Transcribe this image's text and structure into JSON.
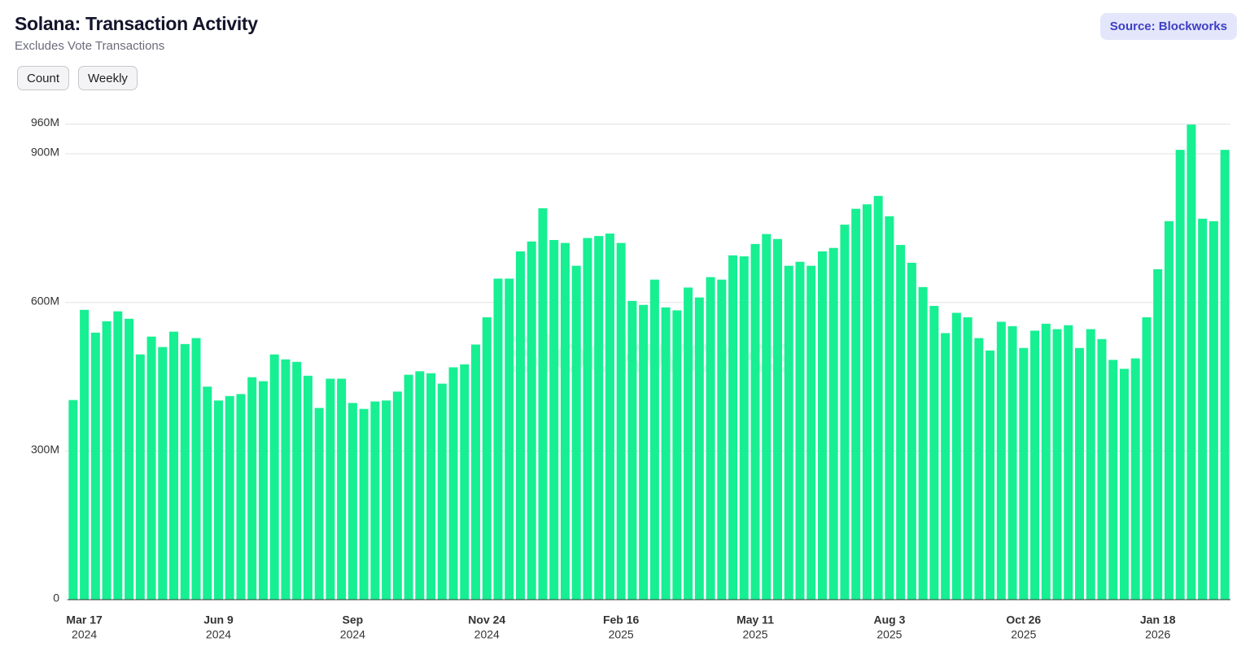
{
  "title": "Solana: Transaction Activity",
  "subtitle": "Excludes Vote Transactions",
  "source": "Source: Blockworks",
  "buttons": [
    "Count",
    "Weekly"
  ],
  "watermark": "Blockworks",
  "chart_data": {
    "type": "bar",
    "color": "#17ef93",
    "grid": true,
    "ylim": [
      0,
      960
    ],
    "yticks": [
      0,
      {
        "value": 300,
        "label": "300M"
      },
      {
        "value": 600,
        "label": "600M"
      },
      {
        "value": 900,
        "label": "900M"
      },
      {
        "value": 960,
        "label": "960M"
      }
    ],
    "categories": [
      null,
      "Mar 17",
      null,
      null,
      null,
      null,
      null,
      null,
      null,
      null,
      null,
      null,
      null,
      "Jun 9",
      null,
      null,
      null,
      null,
      null,
      null,
      null,
      null,
      null,
      null,
      null,
      "Sep",
      null,
      null,
      null,
      null,
      null,
      null,
      null,
      null,
      null,
      null,
      null,
      "Nov 24",
      null,
      null,
      null,
      null,
      null,
      null,
      null,
      null,
      null,
      null,
      null,
      "Feb 16",
      null,
      null,
      null,
      null,
      null,
      null,
      null,
      null,
      null,
      null,
      null,
      "May 11",
      null,
      null,
      null,
      null,
      null,
      null,
      null,
      null,
      null,
      null,
      null,
      "Aug 3",
      null,
      null,
      null,
      null,
      null,
      null,
      null,
      null,
      null,
      null,
      null,
      "Oct 26",
      null,
      null,
      null,
      null,
      null,
      null,
      null,
      null,
      null,
      null,
      null,
      "Jan 18",
      null,
      null,
      null,
      null,
      null,
      null
    ],
    "category_years": [
      null,
      "2024",
      null,
      null,
      null,
      null,
      null,
      null,
      null,
      null,
      null,
      null,
      null,
      "2024",
      null,
      null,
      null,
      null,
      null,
      null,
      null,
      null,
      null,
      null,
      null,
      "2024",
      null,
      null,
      null,
      null,
      null,
      null,
      null,
      null,
      null,
      null,
      null,
      "2024",
      null,
      null,
      null,
      null,
      null,
      null,
      null,
      null,
      null,
      null,
      null,
      "2025",
      null,
      null,
      null,
      null,
      null,
      null,
      null,
      null,
      null,
      null,
      null,
      "2025",
      null,
      null,
      null,
      null,
      null,
      null,
      null,
      null,
      null,
      null,
      null,
      "2025",
      null,
      null,
      null,
      null,
      null,
      null,
      null,
      null,
      null,
      null,
      null,
      "2025",
      null,
      null,
      null,
      null,
      null,
      null,
      null,
      null,
      null,
      null,
      null,
      "2026",
      null,
      null,
      null,
      null,
      null,
      null
    ],
    "values": [
      403,
      585,
      539,
      562,
      582,
      567,
      495,
      531,
      510,
      541,
      516,
      528,
      430,
      402,
      411,
      415,
      449,
      441,
      495,
      485,
      480,
      452,
      387,
      446,
      446,
      397,
      385,
      400,
      402,
      420,
      454,
      461,
      457,
      436,
      469,
      475,
      515,
      570,
      648,
      648,
      703,
      723,
      790,
      726,
      720,
      674,
      730,
      734,
      739,
      720,
      603,
      595,
      646,
      590,
      584,
      630,
      610,
      651,
      646,
      695,
      693,
      718,
      738,
      728,
      674,
      682,
      674,
      703,
      710,
      757,
      789,
      798,
      815,
      774,
      716,
      680,
      631,
      593,
      538,
      579,
      570,
      528,
      503,
      561,
      552,
      508,
      543,
      557,
      546,
      554,
      508,
      546,
      526,
      484,
      466,
      487,
      570,
      667,
      764,
      908,
      959,
      769,
      764,
      908
    ]
  }
}
